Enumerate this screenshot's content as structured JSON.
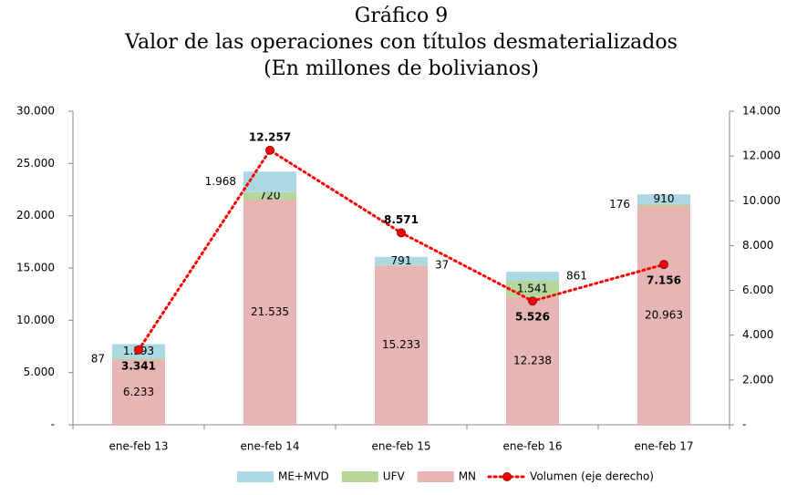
{
  "chart_data": {
    "type": "bar",
    "stacked": true,
    "title_lines": [
      "Gráfico 9",
      "Valor de las operaciones con títulos desmaterializados",
      "(En millones de bolivianos)"
    ],
    "categories": [
      "ene-feb 13",
      "ene-feb 14",
      "ene-feb 15",
      "ene-feb 16",
      "ene-feb 17"
    ],
    "series": [
      {
        "name": "MN",
        "color": "#e6b5b4",
        "values": [
          6233,
          21535,
          15233,
          12238,
          20963
        ],
        "value_labels": [
          "6.233",
          "21.535",
          "15.233",
          "12.238",
          "20.963"
        ]
      },
      {
        "name": "UFV",
        "color": "#b6d69c",
        "values": [
          87,
          720,
          37,
          1541,
          176
        ],
        "value_labels": [
          "87",
          "720",
          "37",
          "1.541",
          "176"
        ]
      },
      {
        "name": "ME+MVD",
        "color": "#abd8e2",
        "values": [
          1393,
          1968,
          791,
          861,
          910
        ],
        "value_labels": [
          "1.393",
          "1.968",
          "791",
          "861",
          "910"
        ]
      },
      {
        "name": "Volumen (eje derecho)",
        "type": "line",
        "axis": "y2",
        "color": "#ff0000",
        "values": [
          3341,
          12257,
          8571,
          5526,
          7156
        ],
        "value_labels": [
          "3.341",
          "12.257",
          "8.571",
          "5.526",
          "7.156"
        ]
      }
    ],
    "ylim": [
      0,
      30000
    ],
    "yticks": [
      {
        "value": 0,
        "label": "-"
      },
      {
        "value": 5000,
        "label": "5.000"
      },
      {
        "value": 10000,
        "label": "10.000"
      },
      {
        "value": 15000,
        "label": "15.000"
      },
      {
        "value": 20000,
        "label": "20.000"
      },
      {
        "value": 25000,
        "label": "25.000"
      },
      {
        "value": 30000,
        "label": "30.000"
      }
    ],
    "y2lim": [
      0,
      14000
    ],
    "y2ticks": [
      {
        "value": 0,
        "label": "-"
      },
      {
        "value": 2000,
        "label": "2.000"
      },
      {
        "value": 4000,
        "label": "4.000"
      },
      {
        "value": 6000,
        "label": "6.000"
      },
      {
        "value": 8000,
        "label": "8.000"
      },
      {
        "value": 10000,
        "label": "10.000"
      },
      {
        "value": 12000,
        "label": "12.000"
      },
      {
        "value": 14000,
        "label": "14.000"
      }
    ],
    "grid": false,
    "legend": "bottom"
  }
}
